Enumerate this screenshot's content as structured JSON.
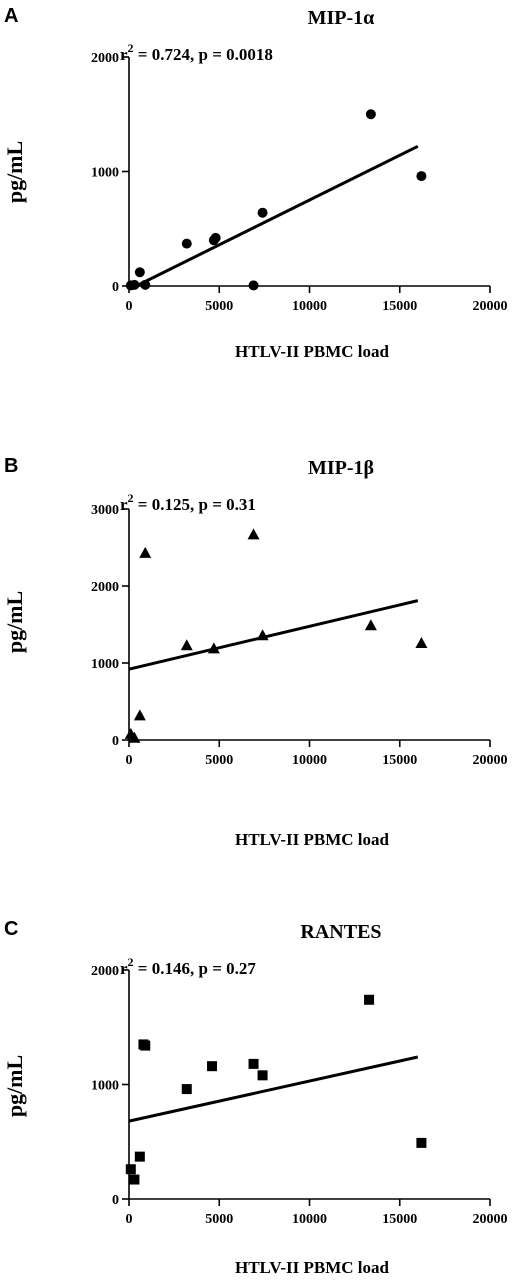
{
  "chart_data": [
    {
      "panel": "A",
      "type": "scatter",
      "title": "MIP-1α",
      "stat_r": "r",
      "stat_sup": "2",
      "stat_rest": " = 0.724, p = 0.0018",
      "xlabel": "HTLV-II PBMC load",
      "ylabel": "pg/mL",
      "marker": "circle",
      "xlim": [
        0,
        20000
      ],
      "ylim": [
        0,
        2000
      ],
      "xticks": [
        0,
        5000,
        10000,
        15000,
        20000
      ],
      "yticks": [
        0,
        1000,
        2000
      ],
      "points": [
        [
          100,
          5
        ],
        [
          300,
          10
        ],
        [
          600,
          120
        ],
        [
          900,
          10
        ],
        [
          3200,
          370
        ],
        [
          4700,
          400
        ],
        [
          4800,
          420
        ],
        [
          6900,
          5
        ],
        [
          7400,
          640
        ],
        [
          13400,
          1500
        ],
        [
          16200,
          960
        ]
      ],
      "fit": [
        [
          400,
          0
        ],
        [
          16000,
          1220
        ]
      ]
    },
    {
      "panel": "B",
      "type": "scatter",
      "title": "MIP-1β",
      "stat_r": "r",
      "stat_sup": "2",
      "stat_rest": " = 0.125, p = 0.31",
      "xlabel": "HTLV-II PBMC load",
      "ylabel": "pg/mL",
      "marker": "triangle",
      "xlim": [
        0,
        20000
      ],
      "ylim": [
        0,
        3000
      ],
      "xticks": [
        0,
        5000,
        10000,
        15000,
        20000
      ],
      "yticks": [
        0,
        1000,
        2000,
        3000
      ],
      "points": [
        [
          100,
          80
        ],
        [
          300,
          30
        ],
        [
          600,
          320
        ],
        [
          900,
          2430
        ],
        [
          3200,
          1230
        ],
        [
          4700,
          1190
        ],
        [
          6900,
          2670
        ],
        [
          7400,
          1360
        ],
        [
          13400,
          1490
        ],
        [
          16200,
          1260
        ]
      ],
      "fit": [
        [
          0,
          920
        ],
        [
          16000,
          1810
        ]
      ]
    },
    {
      "panel": "C",
      "type": "scatter",
      "title": "RANTES",
      "stat_r": "r",
      "stat_sup": "2",
      "stat_rest": " = 0.146, p = 0.27",
      "xlabel": "HTLV-II PBMC load",
      "ylabel": "pg/mL",
      "marker": "square",
      "xlim": [
        0,
        20000
      ],
      "ylim": [
        0,
        2000
      ],
      "xticks": [
        0,
        5000,
        10000,
        15000,
        20000
      ],
      "yticks": [
        0,
        1000,
        2000
      ],
      "points": [
        [
          100,
          260
        ],
        [
          300,
          170
        ],
        [
          600,
          370
        ],
        [
          800,
          1350
        ],
        [
          900,
          1340
        ],
        [
          3200,
          960
        ],
        [
          4600,
          1160
        ],
        [
          6900,
          1180
        ],
        [
          7400,
          1080
        ],
        [
          13300,
          1740
        ],
        [
          16200,
          490
        ]
      ],
      "fit": [
        [
          0,
          680
        ],
        [
          16000,
          1240
        ]
      ]
    }
  ]
}
